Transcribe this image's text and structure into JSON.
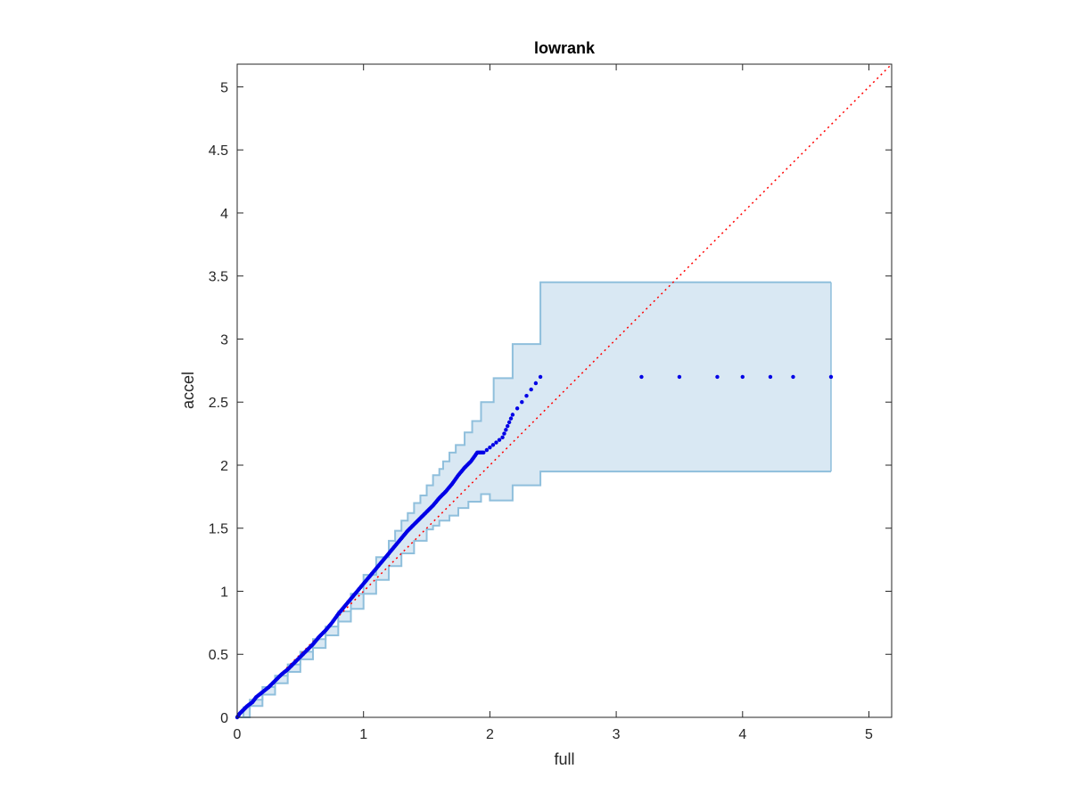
{
  "chart_data": {
    "type": "scatter",
    "title": "lowrank",
    "xlabel": "full",
    "ylabel": "accel",
    "xlim": [
      0,
      5.18
    ],
    "ylim": [
      0,
      5.18
    ],
    "xticks": [
      0,
      1,
      2,
      3,
      4,
      5
    ],
    "yticks": [
      0,
      0.5,
      1,
      1.5,
      2,
      2.5,
      3,
      3.5,
      4,
      4.5,
      5
    ],
    "xtick_labels": [
      "0",
      "1",
      "2",
      "3",
      "4",
      "5"
    ],
    "ytick_labels": [
      "0",
      "0.5",
      "1",
      "1.5",
      "2",
      "2.5",
      "3",
      "3.5",
      "4",
      "4.5",
      "5"
    ],
    "grid": false,
    "box": true,
    "reference_line": {
      "style": "dotted",
      "color": "#ff0000",
      "points": [
        [
          0,
          0
        ],
        [
          5.18,
          5.18
        ]
      ]
    },
    "band": {
      "fill": "#d9e8f3",
      "stroke": "#8fbfdc",
      "upper": [
        [
          0,
          0
        ],
        [
          0.05,
          0.08
        ],
        [
          0.1,
          0.14
        ],
        [
          0.2,
          0.24
        ],
        [
          0.3,
          0.33
        ],
        [
          0.4,
          0.42
        ],
        [
          0.5,
          0.52
        ],
        [
          0.6,
          0.62
        ],
        [
          0.7,
          0.72
        ],
        [
          0.8,
          0.84
        ],
        [
          0.9,
          0.98
        ],
        [
          1.0,
          1.13
        ],
        [
          1.1,
          1.27
        ],
        [
          1.2,
          1.4
        ],
        [
          1.25,
          1.48
        ],
        [
          1.3,
          1.56
        ],
        [
          1.35,
          1.62
        ],
        [
          1.4,
          1.7
        ],
        [
          1.45,
          1.76
        ],
        [
          1.5,
          1.84
        ],
        [
          1.55,
          1.92
        ],
        [
          1.6,
          1.97
        ],
        [
          1.63,
          2.03
        ],
        [
          1.68,
          2.1
        ],
        [
          1.73,
          2.16
        ],
        [
          1.8,
          2.26
        ],
        [
          1.86,
          2.35
        ],
        [
          1.93,
          2.5
        ],
        [
          2.03,
          2.69
        ],
        [
          2.18,
          2.96
        ],
        [
          2.4,
          3.45
        ],
        [
          4.7,
          3.45
        ]
      ],
      "lower": [
        [
          0,
          0
        ],
        [
          0.1,
          0.09
        ],
        [
          0.2,
          0.18
        ],
        [
          0.3,
          0.27
        ],
        [
          0.4,
          0.36
        ],
        [
          0.5,
          0.46
        ],
        [
          0.6,
          0.55
        ],
        [
          0.7,
          0.65
        ],
        [
          0.8,
          0.76
        ],
        [
          0.9,
          0.86
        ],
        [
          1.0,
          0.98
        ],
        [
          1.1,
          1.09
        ],
        [
          1.2,
          1.2
        ],
        [
          1.3,
          1.3
        ],
        [
          1.4,
          1.4
        ],
        [
          1.5,
          1.49
        ],
        [
          1.55,
          1.52
        ],
        [
          1.6,
          1.56
        ],
        [
          1.68,
          1.6
        ],
        [
          1.75,
          1.66
        ],
        [
          1.83,
          1.71
        ],
        [
          1.93,
          1.77
        ],
        [
          2.0,
          1.72
        ],
        [
          2.18,
          1.84
        ],
        [
          2.4,
          1.95
        ],
        [
          4.7,
          1.95
        ]
      ]
    },
    "series": [
      {
        "color": "#0000e6",
        "marker": "dot",
        "points": [
          [
            0.0,
            0.0
          ],
          [
            0.02,
            0.03
          ],
          [
            0.05,
            0.06
          ],
          [
            0.08,
            0.09
          ],
          [
            0.12,
            0.12
          ],
          [
            0.15,
            0.16
          ],
          [
            0.2,
            0.2
          ],
          [
            0.25,
            0.24
          ],
          [
            0.3,
            0.29
          ],
          [
            0.35,
            0.34
          ],
          [
            0.4,
            0.38
          ],
          [
            0.45,
            0.43
          ],
          [
            0.5,
            0.48
          ],
          [
            0.55,
            0.53
          ],
          [
            0.6,
            0.58
          ],
          [
            0.65,
            0.64
          ],
          [
            0.7,
            0.69
          ],
          [
            0.75,
            0.75
          ],
          [
            0.8,
            0.82
          ],
          [
            0.85,
            0.88
          ],
          [
            0.9,
            0.94
          ],
          [
            0.95,
            1.0
          ],
          [
            1.0,
            1.06
          ],
          [
            1.05,
            1.12
          ],
          [
            1.1,
            1.18
          ],
          [
            1.15,
            1.24
          ],
          [
            1.2,
            1.3
          ],
          [
            1.25,
            1.36
          ],
          [
            1.3,
            1.42
          ],
          [
            1.35,
            1.48
          ],
          [
            1.4,
            1.53
          ],
          [
            1.45,
            1.58
          ],
          [
            1.5,
            1.63
          ],
          [
            1.55,
            1.68
          ],
          [
            1.6,
            1.74
          ],
          [
            1.65,
            1.79
          ],
          [
            1.7,
            1.85
          ],
          [
            1.75,
            1.92
          ],
          [
            1.8,
            1.98
          ],
          [
            1.85,
            2.03
          ],
          [
            1.9,
            2.1
          ],
          [
            1.95,
            2.1
          ],
          [
            2.1,
            2.22
          ],
          [
            2.18,
            2.4
          ],
          [
            2.4,
            2.7
          ],
          [
            3.2,
            2.7
          ],
          [
            3.5,
            2.7
          ],
          [
            3.8,
            2.7
          ],
          [
            4.0,
            2.7
          ],
          [
            4.22,
            2.7
          ],
          [
            4.4,
            2.7
          ],
          [
            4.7,
            2.7
          ]
        ]
      }
    ]
  }
}
